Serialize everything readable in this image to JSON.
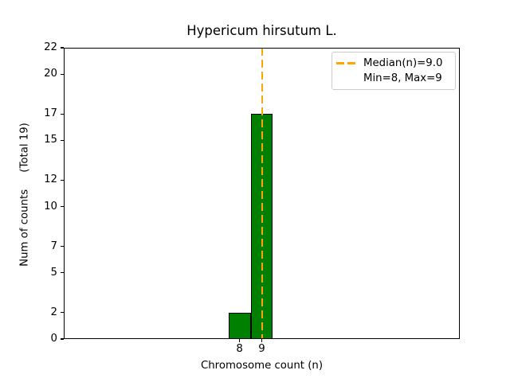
{
  "chart_data": {
    "type": "bar",
    "title": "Hypericum hirsutum L.",
    "xlabel": "Chromosome count (n)",
    "ylabel": "Num of counts     (Total 19)",
    "categories": [
      8,
      9
    ],
    "values": [
      2,
      17
    ],
    "total_counts": 19,
    "bar_width": 1,
    "bar_color": "#008000",
    "bar_edge_color": "#000000",
    "xlim": [
      0.1,
      17.9
    ],
    "ylim": [
      0,
      22
    ],
    "xticks": [
      8,
      9
    ],
    "yticks": [
      0,
      2,
      5,
      7,
      10,
      12,
      15,
      17,
      20,
      22
    ],
    "grid": false,
    "median_line": {
      "x": 9.0,
      "color": "#ffa500",
      "style": "dashed"
    },
    "legend": {
      "position": "upper right",
      "entries": [
        {
          "label": "Median(n)=9.0",
          "marker": "dashed-line",
          "color": "#ffa500"
        },
        {
          "label": "Min=8, Max=9",
          "marker": "none"
        }
      ]
    }
  }
}
